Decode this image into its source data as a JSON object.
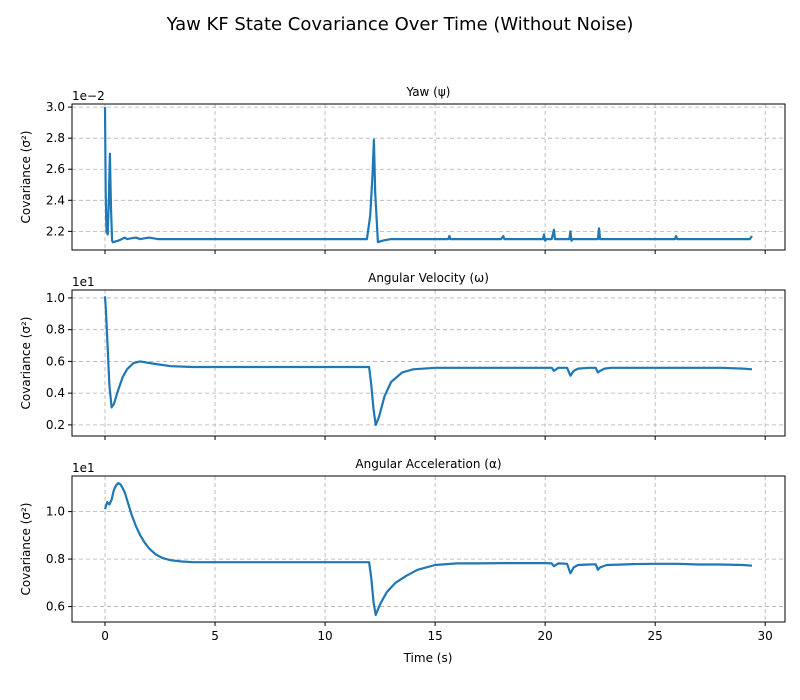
{
  "figure": {
    "title": "Yaw KF State Covariance Over Time  (Without Noise)",
    "xlabel": "Time (s)",
    "line_color": "#1f77b4"
  },
  "chart_data": [
    {
      "type": "line",
      "title": "Yaw (ψ)",
      "ylabel": "Covariance (σ²)",
      "offset_text": "1e−2",
      "xlim": [
        -1.5,
        30.9
      ],
      "ylim": [
        2.08,
        3.02
      ],
      "xticks": [
        0,
        5,
        10,
        15,
        20,
        25,
        30
      ],
      "xtick_labels": [
        "0",
        "5",
        "10",
        "15",
        "20",
        "25",
        "30"
      ],
      "yticks": [
        2.2,
        2.4,
        2.6,
        2.8,
        3.0
      ],
      "ytick_labels": [
        "2.2",
        "2.4",
        "2.6",
        "2.8",
        "3.0"
      ],
      "grid": true,
      "series": [
        {
          "color": "#1f77b4",
          "x": [
            0,
            0.03,
            0.07,
            0.12,
            0.17,
            0.22,
            0.27,
            0.32,
            0.36,
            0.6,
            0.9,
            1.0,
            1.4,
            1.6,
            2.0,
            2.4,
            3.0,
            4.0,
            5.0,
            6.0,
            7.0,
            8.0,
            9.0,
            10.0,
            11.0,
            11.9,
            12.05,
            12.15,
            12.22,
            12.28,
            12.4,
            12.6,
            13.0,
            13.5,
            14.0,
            15.0,
            15.6,
            15.65,
            15.7,
            16.0,
            17.0,
            18.0,
            18.1,
            18.15,
            18.2,
            19.0,
            19.9,
            19.95,
            20.0,
            20.05,
            20.3,
            20.4,
            20.45,
            20.5,
            20.8,
            21.1,
            21.15,
            21.2,
            21.25,
            21.6,
            22.0,
            22.4,
            22.45,
            22.5,
            22.55,
            23.0,
            24.0,
            25.0,
            25.9,
            25.95,
            26.0,
            26.5,
            27.0,
            28.0,
            29.0,
            29.3,
            29.4
          ],
          "y": [
            3.0,
            2.45,
            2.2,
            2.18,
            2.4,
            2.7,
            2.35,
            2.14,
            2.13,
            2.14,
            2.16,
            2.15,
            2.16,
            2.15,
            2.16,
            2.15,
            2.15,
            2.15,
            2.15,
            2.15,
            2.15,
            2.15,
            2.15,
            2.15,
            2.15,
            2.15,
            2.3,
            2.55,
            2.79,
            2.45,
            2.13,
            2.14,
            2.15,
            2.15,
            2.15,
            2.15,
            2.15,
            2.17,
            2.15,
            2.15,
            2.15,
            2.15,
            2.17,
            2.15,
            2.15,
            2.15,
            2.15,
            2.18,
            2.14,
            2.15,
            2.15,
            2.21,
            2.15,
            2.15,
            2.15,
            2.15,
            2.2,
            2.14,
            2.15,
            2.15,
            2.15,
            2.15,
            2.22,
            2.15,
            2.15,
            2.15,
            2.15,
            2.15,
            2.15,
            2.17,
            2.15,
            2.15,
            2.15,
            2.15,
            2.15,
            2.15,
            2.17
          ]
        }
      ]
    },
    {
      "type": "line",
      "title": "Angular Velocity (ω)",
      "ylabel": "Covariance (σ²)",
      "offset_text": "1e1",
      "xlim": [
        -1.5,
        30.9
      ],
      "ylim": [
        0.13,
        1.05
      ],
      "xticks": [
        0,
        5,
        10,
        15,
        20,
        25,
        30
      ],
      "xtick_labels": [
        "0",
        "5",
        "10",
        "15",
        "20",
        "25",
        "30"
      ],
      "yticks": [
        0.2,
        0.4,
        0.6,
        0.8,
        1.0
      ],
      "ytick_labels": [
        "0.2",
        "0.4",
        "0.6",
        "0.8",
        "1.0"
      ],
      "grid": true,
      "series": [
        {
          "color": "#1f77b4",
          "x": [
            0,
            0.05,
            0.1,
            0.15,
            0.2,
            0.3,
            0.4,
            0.6,
            0.8,
            1.0,
            1.3,
            1.6,
            2.0,
            2.5,
            3.0,
            4.0,
            5.0,
            6.0,
            7.0,
            8.0,
            9.0,
            10.0,
            11.0,
            11.8,
            12.0,
            12.1,
            12.2,
            12.3,
            12.45,
            12.7,
            13.0,
            13.5,
            14.0,
            15.0,
            16.0,
            17.0,
            18.0,
            19.0,
            20.0,
            20.3,
            20.4,
            20.6,
            21.0,
            21.15,
            21.3,
            21.5,
            22.0,
            22.3,
            22.4,
            22.5,
            22.7,
            23.0,
            24.0,
            25.0,
            26.0,
            27.0,
            28.0,
            29.0,
            29.4
          ],
          "y": [
            1.01,
            0.9,
            0.75,
            0.6,
            0.45,
            0.31,
            0.33,
            0.42,
            0.5,
            0.55,
            0.59,
            0.6,
            0.59,
            0.58,
            0.57,
            0.565,
            0.565,
            0.565,
            0.565,
            0.565,
            0.565,
            0.565,
            0.565,
            0.565,
            0.565,
            0.45,
            0.3,
            0.2,
            0.25,
            0.38,
            0.47,
            0.53,
            0.55,
            0.56,
            0.56,
            0.56,
            0.56,
            0.56,
            0.56,
            0.56,
            0.54,
            0.56,
            0.56,
            0.51,
            0.54,
            0.555,
            0.56,
            0.56,
            0.53,
            0.54,
            0.555,
            0.56,
            0.56,
            0.56,
            0.56,
            0.56,
            0.56,
            0.555,
            0.55
          ]
        }
      ]
    },
    {
      "type": "line",
      "title": "Angular Acceleration (α)",
      "ylabel": "Covariance (σ²)",
      "offset_text": "1e1",
      "xlim": [
        -1.5,
        30.9
      ],
      "ylim": [
        0.535,
        1.15
      ],
      "xticks": [
        0,
        5,
        10,
        15,
        20,
        25,
        30
      ],
      "xtick_labels": [
        "0",
        "5",
        "10",
        "15",
        "20",
        "25",
        "30"
      ],
      "yticks": [
        0.6,
        0.8,
        1.0
      ],
      "ytick_labels": [
        "0.6",
        "0.8",
        "1.0"
      ],
      "grid": true,
      "series": [
        {
          "color": "#1f77b4",
          "x": [
            0,
            0.1,
            0.2,
            0.3,
            0.4,
            0.5,
            0.6,
            0.7,
            0.8,
            0.9,
            1.0,
            1.2,
            1.4,
            1.6,
            1.8,
            2.0,
            2.3,
            2.6,
            3.0,
            3.5,
            4.0,
            5.0,
            6.0,
            7.0,
            8.0,
            9.0,
            10.0,
            11.0,
            11.9,
            12.0,
            12.1,
            12.2,
            12.3,
            12.5,
            12.8,
            13.2,
            13.7,
            14.2,
            15.0,
            16.0,
            17.0,
            18.0,
            19.0,
            20.0,
            20.3,
            20.4,
            20.6,
            21.0,
            21.15,
            21.3,
            21.5,
            22.0,
            22.3,
            22.4,
            22.5,
            22.8,
            23.5,
            24.0,
            25.0,
            26.0,
            27.0,
            28.0,
            29.0,
            29.4
          ],
          "y": [
            1.01,
            1.04,
            1.03,
            1.05,
            1.09,
            1.11,
            1.12,
            1.115,
            1.1,
            1.08,
            1.05,
            0.99,
            0.94,
            0.9,
            0.87,
            0.845,
            0.82,
            0.805,
            0.795,
            0.79,
            0.787,
            0.787,
            0.787,
            0.787,
            0.787,
            0.787,
            0.787,
            0.787,
            0.787,
            0.787,
            0.72,
            0.62,
            0.565,
            0.61,
            0.66,
            0.7,
            0.73,
            0.755,
            0.775,
            0.782,
            0.782,
            0.783,
            0.783,
            0.783,
            0.782,
            0.77,
            0.782,
            0.78,
            0.74,
            0.765,
            0.775,
            0.777,
            0.778,
            0.755,
            0.765,
            0.775,
            0.777,
            0.779,
            0.78,
            0.78,
            0.777,
            0.777,
            0.775,
            0.772
          ]
        }
      ]
    }
  ]
}
